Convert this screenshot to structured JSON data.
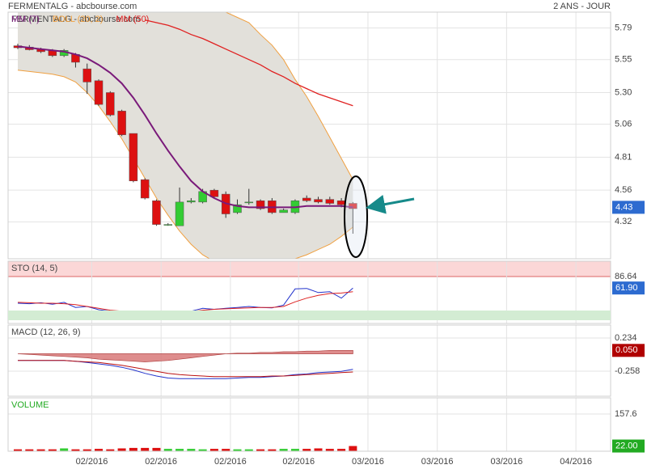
{
  "chart_data": [
    {
      "type": "candlestick",
      "title": "FERMENTALG - abcbourse.com",
      "subtitle": "2 ANS - JOUR",
      "up_color": "#33cc33",
      "down_color": "#dd1111",
      "open": [
        5.655,
        5.645,
        5.63,
        5.62,
        5.58,
        5.59,
        5.48,
        5.39,
        5.3,
        5.16,
        4.99,
        4.64,
        4.48,
        4.3,
        4.29,
        4.47,
        4.47,
        4.56,
        4.53,
        4.39,
        4.47,
        4.48,
        4.48,
        4.39,
        4.39,
        4.5,
        4.49,
        4.49,
        4.48,
        4.46
      ],
      "high": [
        5.67,
        5.66,
        5.64,
        5.63,
        5.63,
        5.6,
        5.52,
        5.4,
        5.31,
        5.17,
        4.99,
        4.65,
        4.49,
        4.31,
        4.58,
        4.5,
        4.57,
        4.57,
        4.55,
        4.49,
        4.57,
        4.49,
        4.5,
        4.42,
        4.49,
        4.52,
        4.51,
        4.51,
        4.5,
        4.47
      ],
      "low": [
        5.63,
        5.62,
        5.6,
        5.57,
        5.57,
        5.49,
        5.29,
        5.2,
        5.12,
        4.97,
        4.62,
        4.49,
        4.29,
        4.29,
        4.29,
        4.46,
        4.46,
        4.5,
        4.35,
        4.38,
        4.45,
        4.41,
        4.38,
        4.39,
        4.38,
        4.47,
        4.46,
        4.45,
        4.43,
        4.23
      ],
      "close": [
        5.64,
        5.625,
        5.61,
        5.58,
        5.62,
        5.53,
        5.38,
        5.21,
        5.13,
        4.98,
        4.63,
        4.5,
        4.3,
        4.3,
        4.47,
        4.48,
        4.55,
        4.51,
        4.38,
        4.45,
        4.47,
        4.42,
        4.39,
        4.41,
        4.48,
        4.48,
        4.47,
        4.46,
        4.45,
        4.42
      ],
      "series": [
        {
          "name": "MM (7)",
          "color": "#7a1a7a",
          "values": [
            5.65,
            5.64,
            5.63,
            5.62,
            5.61,
            5.59,
            5.56,
            5.51,
            5.45,
            5.37,
            5.26,
            5.13,
            4.99,
            4.86,
            4.74,
            4.63,
            4.55,
            4.5,
            4.46,
            4.44,
            4.43,
            4.43,
            4.43,
            4.43,
            4.43,
            4.44,
            4.44,
            4.44,
            4.44,
            4.43
          ]
        },
        {
          "name": "BOLL (20, 2)",
          "color": "#f0a040",
          "fill": "#e2e0da",
          "upper": [
            5.95,
            5.98,
            6.0,
            6.05,
            6.1,
            6.15,
            6.2,
            6.25,
            6.3,
            6.3,
            6.3,
            6.25,
            6.2,
            6.15,
            6.1,
            6.03,
            5.97,
            5.93,
            5.91,
            5.87,
            5.83,
            5.74,
            5.66,
            5.55,
            5.4,
            5.27,
            5.12,
            4.96,
            4.8,
            4.64
          ],
          "lower": [
            5.47,
            5.46,
            5.45,
            5.44,
            5.42,
            5.38,
            5.3,
            5.2,
            5.08,
            4.95,
            4.8,
            4.65,
            4.5,
            4.37,
            4.25,
            4.15,
            4.07,
            4.02,
            4.0,
            3.98,
            3.98,
            3.99,
            4.0,
            4.02,
            4.04,
            4.07,
            4.11,
            4.15,
            4.21,
            4.28
          ]
        },
        {
          "name": "MM (50)",
          "color": "#e02020",
          "values": [
            null,
            null,
            null,
            null,
            null,
            null,
            null,
            null,
            null,
            null,
            null,
            5.85,
            5.83,
            5.81,
            5.78,
            5.74,
            5.71,
            5.67,
            5.63,
            5.59,
            5.55,
            5.51,
            5.46,
            5.42,
            5.37,
            5.33,
            5.29,
            5.26,
            5.23,
            5.2
          ]
        }
      ],
      "last_value": 4.43,
      "last_color": "#2d6bd0",
      "xlim": [
        -0.84,
        51.3
      ],
      "xticks": [
        {
          "value": 6.4,
          "label": "02/2016"
        },
        {
          "value": 12.4,
          "label": "02/2016"
        },
        {
          "value": 18.4,
          "label": "02/2016"
        },
        {
          "value": 24.3,
          "label": "02/2016"
        },
        {
          "value": 30.3,
          "label": "03/2016"
        },
        {
          "value": 36.3,
          "label": "03/2016"
        },
        {
          "value": 42.3,
          "label": "03/2016"
        },
        {
          "value": 48.3,
          "label": "04/2016"
        }
      ],
      "ylim": [
        4.04,
        5.91
      ],
      "yticks": [
        5.79,
        5.55,
        {
          "value": 5.3,
          "label": "5.30"
        },
        5.06,
        4.81,
        4.56,
        4.32
      ]
    },
    {
      "type": "line",
      "title": "STO (14, 5)",
      "series": [
        {
          "color": "#2233cc",
          "values": [
            29,
            28,
            30,
            27,
            31,
            20,
            22,
            15,
            12,
            10,
            8,
            8,
            8,
            9,
            9,
            12,
            18,
            16,
            18,
            20,
            22,
            20,
            19,
            25,
            60,
            61,
            52,
            54,
            40,
            61.9
          ]
        },
        {
          "color": "#dd2222",
          "values": [
            31,
            30,
            29,
            29,
            28,
            26,
            22,
            18,
            14,
            12,
            10,
            9,
            8,
            9,
            10,
            11,
            14,
            16,
            17,
            18,
            19,
            20,
            20,
            22,
            32,
            40,
            46,
            50,
            51,
            54
          ]
        }
      ],
      "zone_color": "#fbd7d7",
      "last_value": {
        "value": 61.9,
        "label": "61.90"
      },
      "last_color": "#2d6bd0",
      "ylim": [
        -14.6,
        119.8
      ],
      "yticks": [
        86.64
      ]
    },
    {
      "type": "macd",
      "title": "MACD (12, 26, 9)",
      "series": [
        {
          "color": "#2233cc",
          "values": [
            -0.1,
            -0.1,
            -0.1,
            -0.1,
            -0.1,
            -0.11,
            -0.13,
            -0.15,
            -0.17,
            -0.2,
            -0.24,
            -0.29,
            -0.33,
            -0.36,
            -0.37,
            -0.37,
            -0.37,
            -0.37,
            -0.37,
            -0.36,
            -0.35,
            -0.35,
            -0.34,
            -0.33,
            -0.31,
            -0.3,
            -0.28,
            -0.27,
            -0.26,
            -0.23
          ]
        },
        {
          "color": "#bb1111",
          "values": [
            -0.1,
            -0.1,
            -0.1,
            -0.1,
            -0.1,
            -0.11,
            -0.12,
            -0.13,
            -0.15,
            -0.17,
            -0.2,
            -0.23,
            -0.26,
            -0.29,
            -0.31,
            -0.32,
            -0.33,
            -0.34,
            -0.34,
            -0.34,
            -0.34,
            -0.34,
            -0.33,
            -0.33,
            -0.32,
            -0.31,
            -0.3,
            -0.29,
            -0.28,
            -0.27
          ]
        }
      ],
      "histogram": {
        "color": "#d67070",
        "values": [
          0,
          -0.01,
          -0.02,
          -0.03,
          -0.04,
          -0.05,
          -0.06,
          -0.08,
          -0.09,
          -0.1,
          -0.11,
          -0.12,
          -0.11,
          -0.1,
          -0.08,
          -0.06,
          -0.04,
          -0.02,
          0,
          0.01,
          0.01,
          0.02,
          0.02,
          0.03,
          0.03,
          0.04,
          0.04,
          0.05,
          0.05,
          0.05
        ]
      },
      "last_value": {
        "value": 0.05,
        "label": "0.050"
      },
      "last_color": "#b00000",
      "ylim": [
        -0.63,
        0.426
      ],
      "yticks": [
        0.234,
        -0.258
      ]
    },
    {
      "type": "bar",
      "title": "VOLUME",
      "values": [
        8,
        8,
        8,
        8,
        12,
        8,
        8,
        10,
        8,
        12,
        14,
        14,
        14,
        10,
        10,
        10,
        8,
        10,
        10,
        8,
        8,
        8,
        8,
        10,
        10,
        10,
        12,
        10,
        10,
        22
      ],
      "last_value": {
        "value": 22,
        "label": "22.00"
      },
      "last_color": "#22aa22",
      "ylim": [
        0,
        226
      ],
      "yticks": [
        157.6
      ]
    }
  ]
}
